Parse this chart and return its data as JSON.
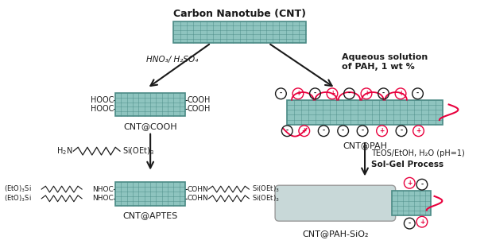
{
  "title": "Carbon Nanotube (CNT)",
  "bg_color": "#ffffff",
  "cnt_color": "#8ec4bf",
  "cnt_grid_color": "#4a8a85",
  "silica_color": "#c8d8d8",
  "silica_edge": "#999999",
  "arrow_color": "#1a1a1a",
  "text_color": "#1a1a1a",
  "red_color": "#e8003d",
  "label_cnt_cooh": "CNT@COOH",
  "label_cnt_pah": "CNT@PAH",
  "label_cnt_aptes": "CNT@APTES",
  "label_cnt_pah_sio2": "CNT@PAH-SiO₂",
  "reagent_left": "HNO₃/ H₂SO₄",
  "reagent_right1": "Aqueous solution",
  "reagent_right2": "of PAH, 1 wt %",
  "reagent_bottom_right1": "TEOS/EtOH, H₂O (pH=1)",
  "reagent_bottom_right2": "Sol-Gel Process"
}
